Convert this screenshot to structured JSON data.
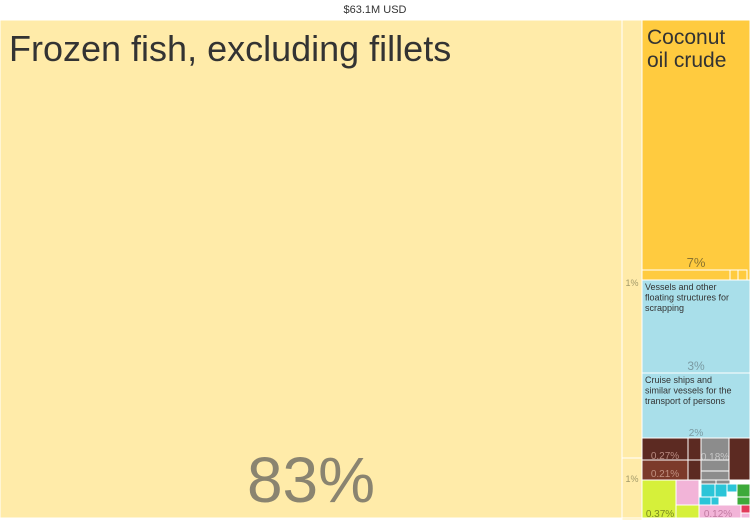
{
  "total_label": "$63.1M USD",
  "chart_data": {
    "type": "treemap",
    "title": "$63.1M USD",
    "items": [
      {
        "name": "Frozen fish, excluding fillets",
        "share": "83%",
        "value": 83,
        "color": "#FFEBA9"
      },
      {
        "name": "",
        "share": "1%",
        "value": 1,
        "color": "#FFEBA9"
      },
      {
        "name": "",
        "share": "1%",
        "value": 1,
        "color": "#FFEBA9"
      },
      {
        "name": "Coconut oil crude",
        "share": "7%",
        "value": 7,
        "color": "#FFCB3F"
      },
      {
        "name": "Vessels and other floating structures for scrapping",
        "share": "3%",
        "value": 3,
        "color": "#A9DFEA"
      },
      {
        "name": "Cruise ships and similar vessels for the transport of persons",
        "share": "2%",
        "value": 2,
        "color": "#A9DFEA"
      },
      {
        "name": "",
        "share": "0.27%",
        "value": 0.27,
        "color": "#5C2A22"
      },
      {
        "name": "",
        "share": "0.21%",
        "value": 0.21,
        "color": "#7C3A2A"
      },
      {
        "name": "",
        "share": "0.18%",
        "value": 0.18,
        "color": "#8C8C8C"
      },
      {
        "name": "",
        "share": "0.37%",
        "value": 0.37,
        "color": "#D6F03A"
      },
      {
        "name": "",
        "share": "0.12%",
        "value": 0.12,
        "color": "#F2B4D8"
      }
    ],
    "minor_colors": [
      "#FFCB3F",
      "#8C8C8C",
      "#5C2A22",
      "#2BC5D8",
      "#3DAA3A",
      "#D6F03A",
      "#F2B4D8",
      "#E23A5A",
      "#FFEBA9"
    ]
  }
}
